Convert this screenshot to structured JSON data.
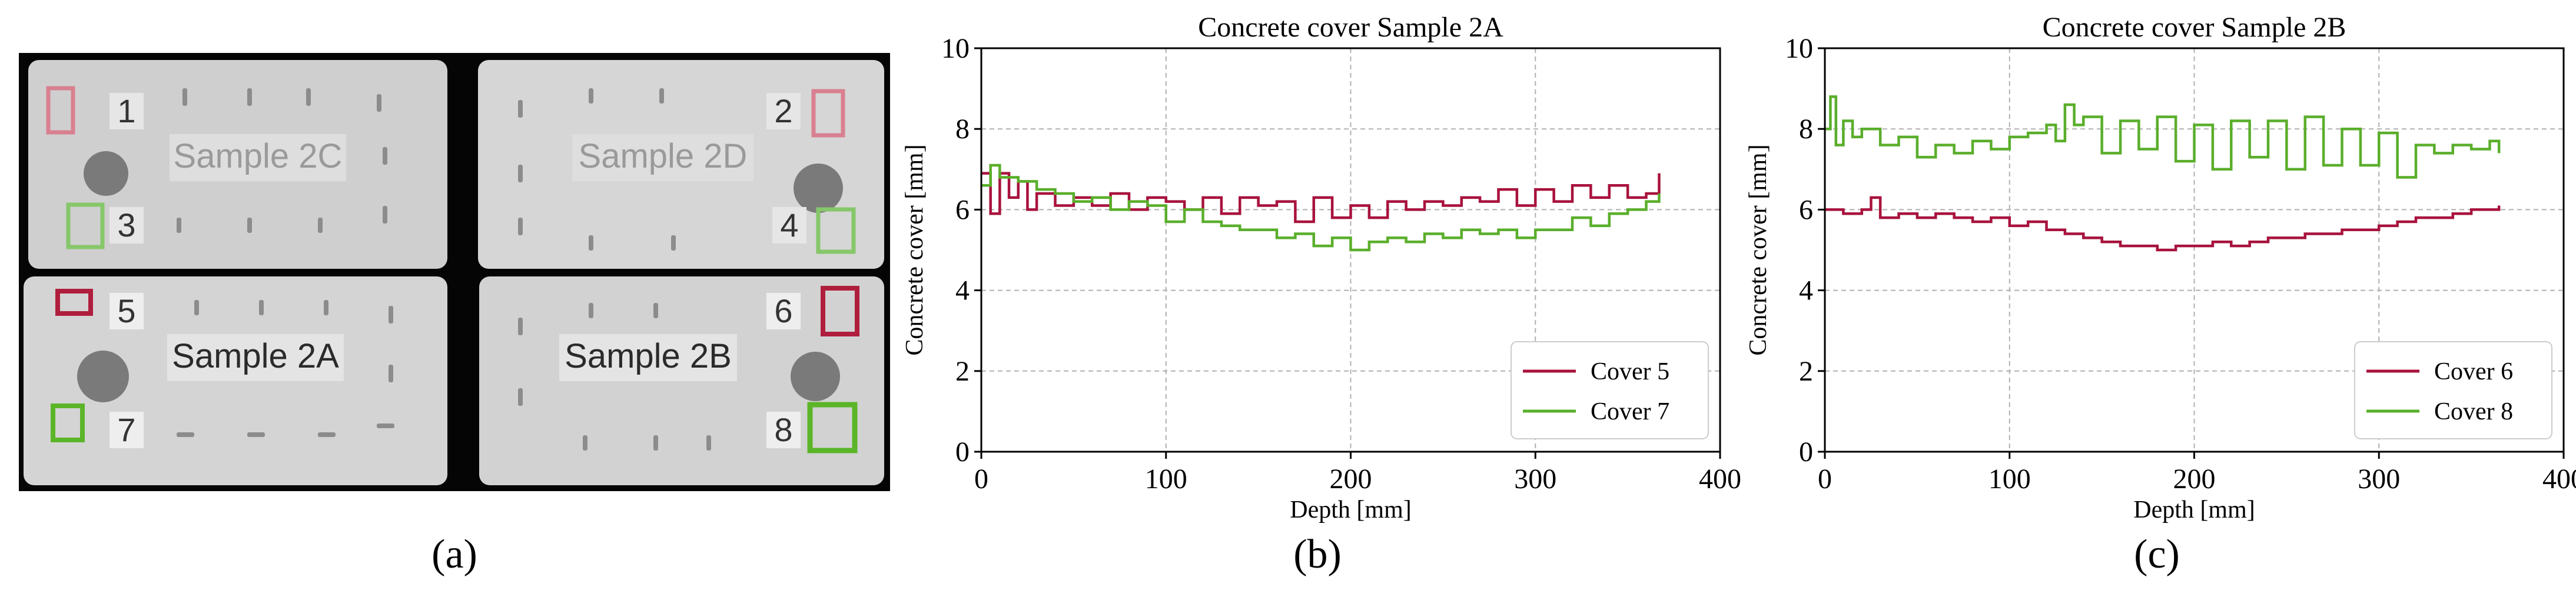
{
  "panel_labels": [
    "(a)",
    "(b)",
    "(c)"
  ],
  "photo": {
    "samples": [
      {
        "label": "Sample 2C"
      },
      {
        "label": "Sample 2D"
      },
      {
        "label": "Sample 2A"
      },
      {
        "label": "Sample 2B"
      }
    ],
    "markers": [
      {
        "num": "1",
        "color": "#d98090"
      },
      {
        "num": "2",
        "color": "#d98090"
      },
      {
        "num": "3",
        "color": "#86c76a"
      },
      {
        "num": "4",
        "color": "#86c76a"
      },
      {
        "num": "5",
        "color": "#b01e3e"
      },
      {
        "num": "6",
        "color": "#b01e3e"
      },
      {
        "num": "7",
        "color": "#5bb528"
      },
      {
        "num": "8",
        "color": "#5bb528"
      }
    ]
  },
  "chart_data": [
    {
      "type": "line",
      "title": "Concrete cover Sample 2A",
      "xlabel": "Depth [mm]",
      "ylabel": "Concrete cover [mm]",
      "xlim": [
        0,
        400
      ],
      "ylim": [
        0,
        10
      ],
      "xticks": [
        0,
        100,
        200,
        300,
        400
      ],
      "yticks": [
        0,
        2,
        4,
        6,
        8,
        10
      ],
      "grid": true,
      "legend_position": "bottom-right",
      "series": [
        {
          "name": "Cover 5",
          "color": "#a8123c",
          "x": [
            0,
            5,
            10,
            15,
            20,
            25,
            30,
            40,
            50,
            60,
            70,
            80,
            90,
            100,
            110,
            120,
            130,
            140,
            150,
            160,
            170,
            180,
            190,
            200,
            210,
            220,
            230,
            240,
            250,
            260,
            270,
            280,
            290,
            300,
            310,
            320,
            330,
            340,
            350,
            360,
            367
          ],
          "y": [
            6.9,
            5.9,
            6.9,
            6.3,
            6.7,
            6.0,
            6.4,
            6.1,
            6.3,
            6.1,
            6.4,
            6.0,
            6.3,
            6.2,
            6.0,
            6.3,
            5.9,
            6.3,
            6.1,
            6.2,
            5.7,
            6.3,
            5.8,
            6.1,
            5.8,
            6.2,
            6.0,
            6.2,
            6.1,
            6.3,
            6.2,
            6.5,
            6.1,
            6.5,
            6.2,
            6.6,
            6.3,
            6.6,
            6.3,
            6.4,
            6.9
          ]
        },
        {
          "name": "Cover 7",
          "color": "#5aae2b",
          "x": [
            0,
            5,
            10,
            20,
            30,
            40,
            50,
            60,
            70,
            80,
            90,
            100,
            110,
            120,
            130,
            140,
            150,
            160,
            170,
            180,
            190,
            200,
            210,
            220,
            230,
            240,
            250,
            260,
            270,
            280,
            290,
            300,
            310,
            320,
            330,
            340,
            350,
            360,
            367
          ],
          "y": [
            6.6,
            7.1,
            6.8,
            6.7,
            6.5,
            6.4,
            6.2,
            6.3,
            6.0,
            6.2,
            6.1,
            5.7,
            6.0,
            5.7,
            5.6,
            5.5,
            5.5,
            5.3,
            5.4,
            5.1,
            5.3,
            5.0,
            5.2,
            5.3,
            5.2,
            5.4,
            5.3,
            5.5,
            5.4,
            5.5,
            5.3,
            5.5,
            5.5,
            5.8,
            5.6,
            5.9,
            6.0,
            6.2,
            6.4
          ]
        }
      ]
    },
    {
      "type": "line",
      "title": "Concrete cover Sample 2B",
      "xlabel": "Depth [mm]",
      "ylabel": "Concrete cover [mm]",
      "xlim": [
        0,
        400
      ],
      "ylim": [
        0,
        10
      ],
      "xticks": [
        0,
        100,
        200,
        300,
        400
      ],
      "yticks": [
        0,
        2,
        4,
        6,
        8,
        10
      ],
      "grid": true,
      "legend_position": "bottom-right",
      "series": [
        {
          "name": "Cover 6",
          "color": "#a8123c",
          "x": [
            0,
            10,
            20,
            25,
            30,
            40,
            50,
            60,
            70,
            80,
            90,
            100,
            110,
            120,
            130,
            140,
            150,
            160,
            170,
            180,
            190,
            200,
            210,
            220,
            230,
            240,
            250,
            260,
            270,
            280,
            290,
            300,
            310,
            320,
            330,
            340,
            350,
            360,
            365
          ],
          "y": [
            6.0,
            5.9,
            6.0,
            6.3,
            5.8,
            5.9,
            5.8,
            5.9,
            5.8,
            5.7,
            5.8,
            5.6,
            5.7,
            5.5,
            5.4,
            5.3,
            5.2,
            5.1,
            5.1,
            5.0,
            5.1,
            5.1,
            5.2,
            5.1,
            5.2,
            5.3,
            5.3,
            5.4,
            5.4,
            5.5,
            5.5,
            5.6,
            5.7,
            5.8,
            5.8,
            5.9,
            6.0,
            6.0,
            6.1
          ]
        },
        {
          "name": "Cover 8",
          "color": "#5aae2b",
          "x": [
            0,
            3,
            6,
            10,
            15,
            20,
            30,
            40,
            50,
            60,
            70,
            80,
            90,
            100,
            110,
            120,
            125,
            130,
            135,
            140,
            150,
            160,
            170,
            180,
            190,
            200,
            210,
            220,
            230,
            240,
            250,
            260,
            270,
            280,
            290,
            300,
            310,
            320,
            330,
            340,
            350,
            360,
            365
          ],
          "y": [
            8.0,
            8.8,
            7.6,
            8.2,
            7.8,
            8.0,
            7.6,
            7.8,
            7.3,
            7.6,
            7.4,
            7.7,
            7.5,
            7.8,
            7.9,
            8.1,
            7.7,
            8.6,
            8.1,
            8.3,
            7.4,
            8.2,
            7.5,
            8.3,
            7.2,
            8.1,
            7.0,
            8.2,
            7.3,
            8.2,
            7.0,
            8.3,
            7.1,
            8.0,
            7.1,
            7.9,
            6.8,
            7.6,
            7.4,
            7.6,
            7.5,
            7.7,
            7.4
          ]
        }
      ]
    }
  ]
}
